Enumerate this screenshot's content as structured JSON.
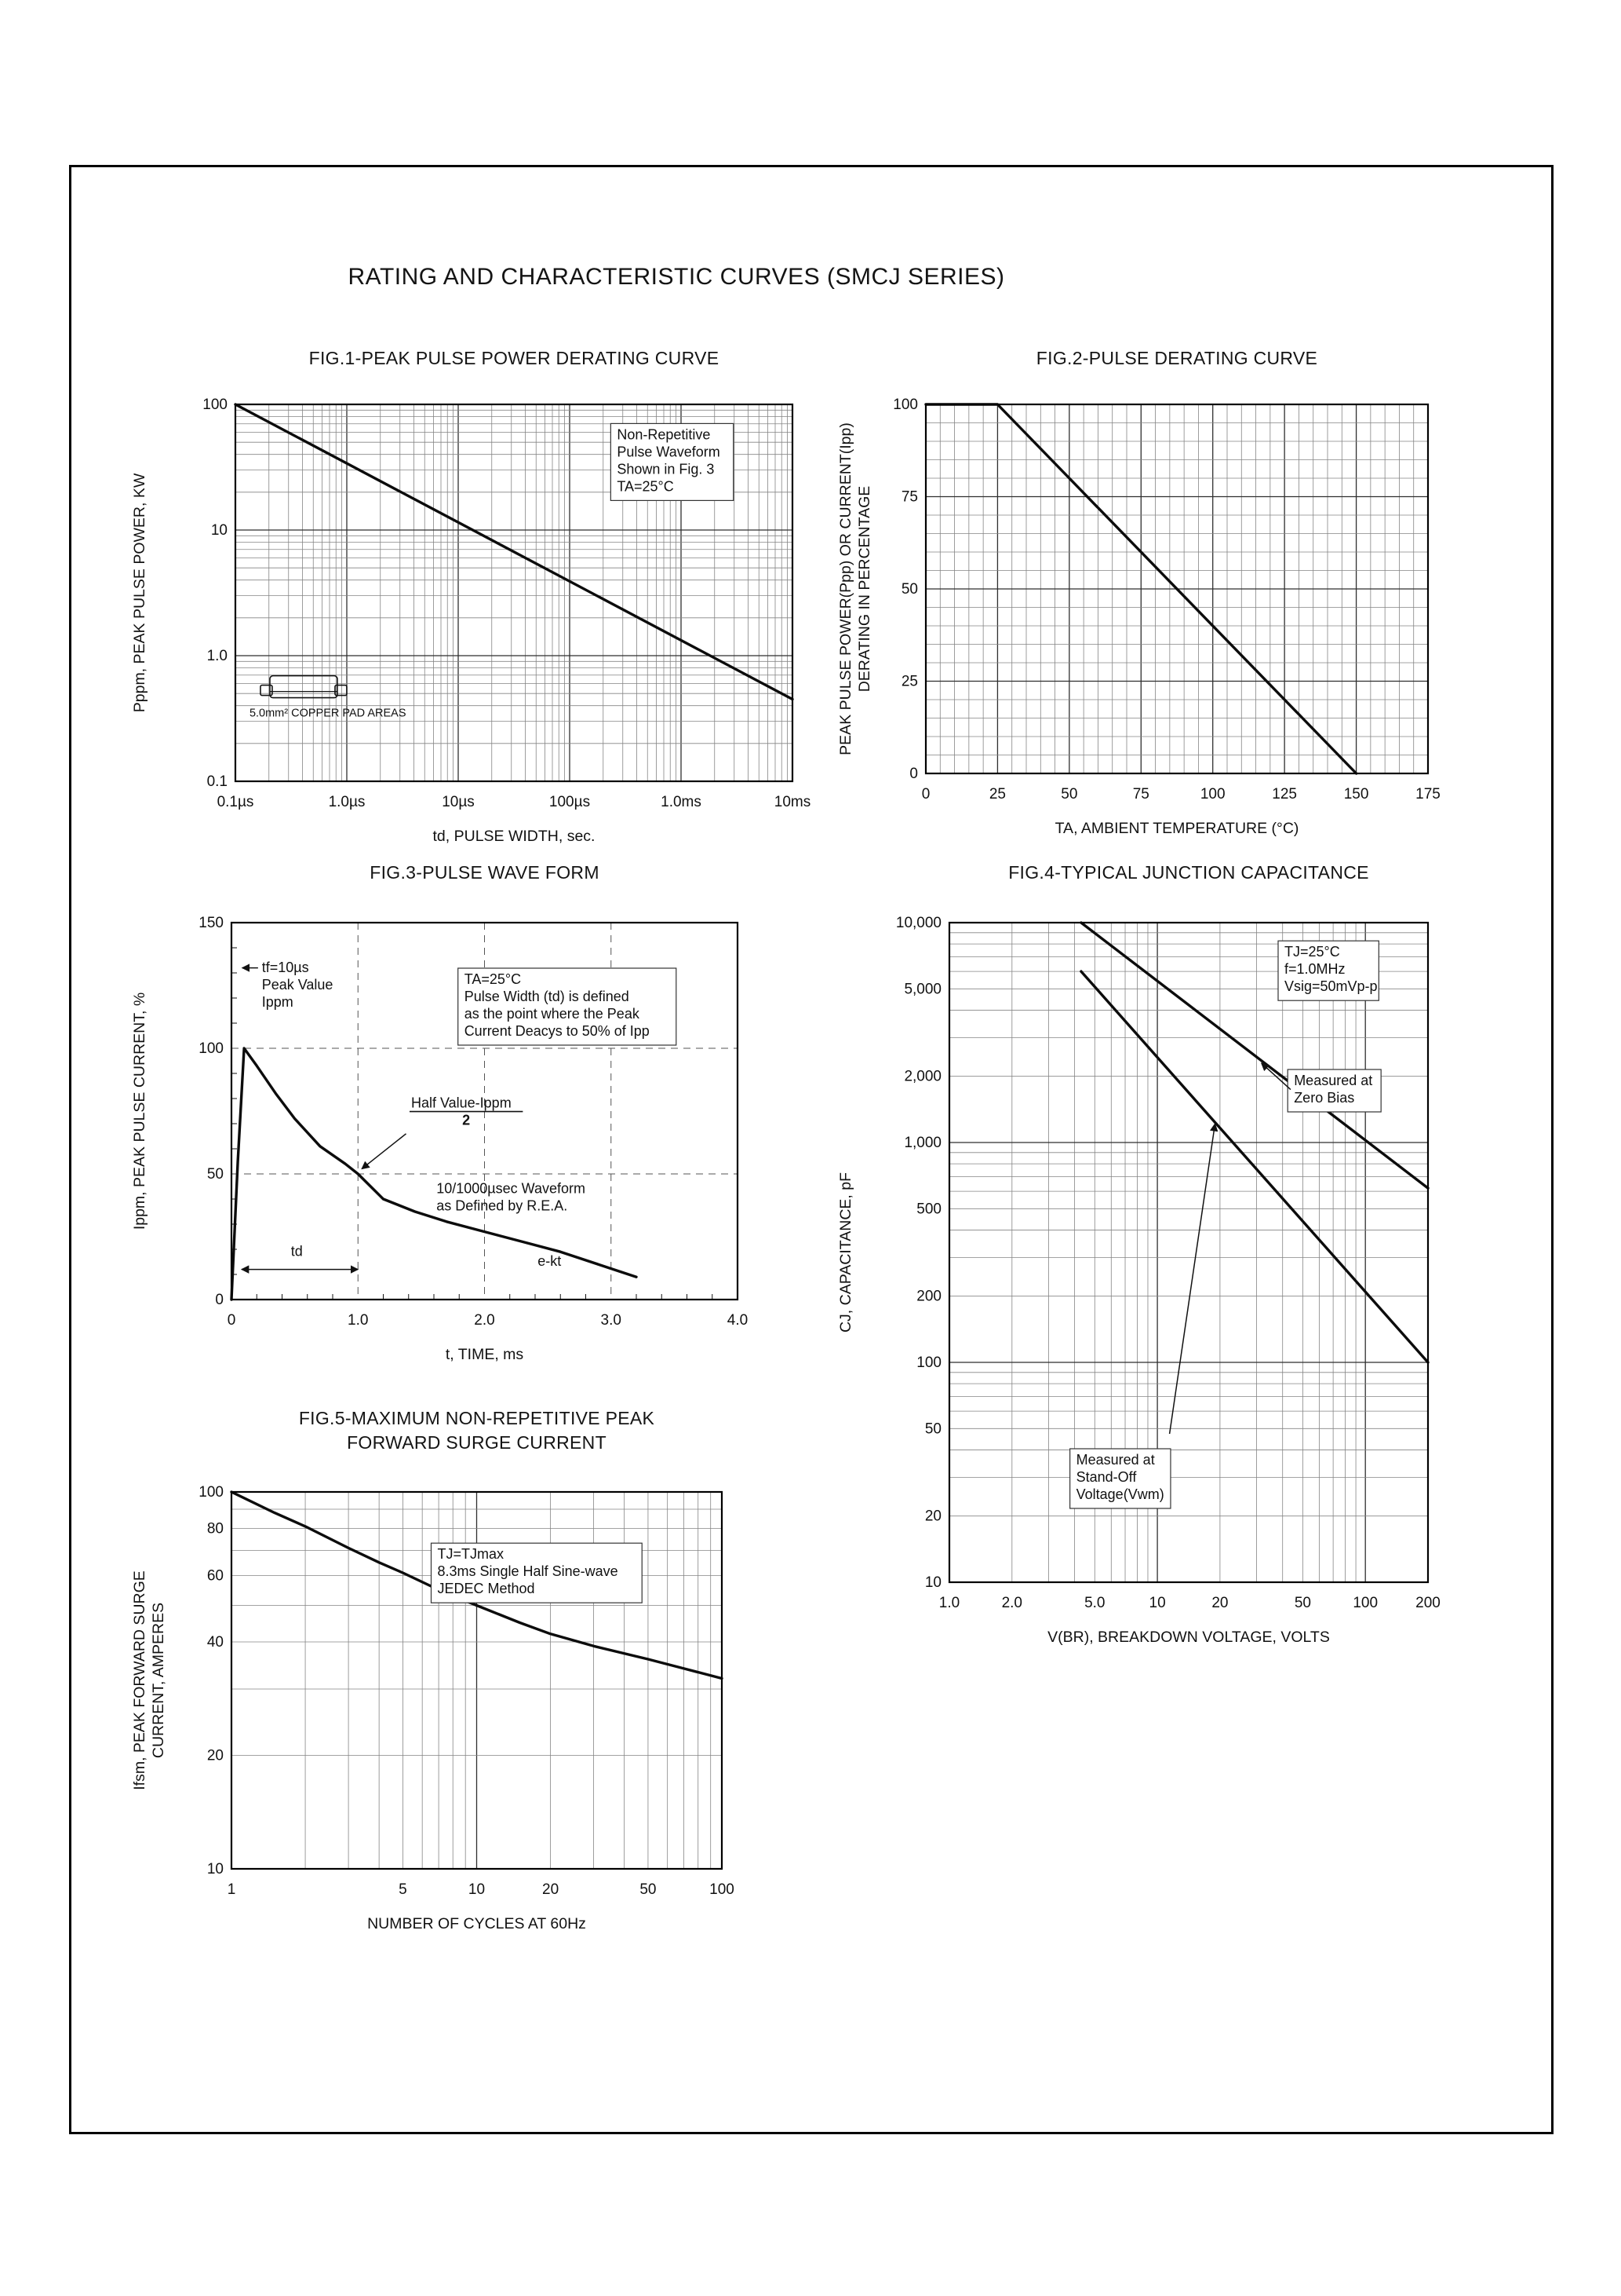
{
  "page": {
    "title": "RATING AND CHARACTERISTIC CURVES (SMCJ SERIES)"
  },
  "chart_data": [
    {
      "id": "fig1",
      "type": "line",
      "title": "FIG.1-PEAK PULSE POWER DERATING CURVE",
      "xlabel": "td, PULSE WIDTH, sec.",
      "ylabel": [
        "Pppm, PEAK PULSE POWER, KW"
      ],
      "x": {
        "scale": "log",
        "min": 1e-07,
        "max": 0.01,
        "ticks": [
          {
            "v": 1e-07,
            "label": "0.1µs"
          },
          {
            "v": 1e-06,
            "label": "1.0µs"
          },
          {
            "v": 1e-05,
            "label": "10µs"
          },
          {
            "v": 0.0001,
            "label": "100µs"
          },
          {
            "v": 0.001,
            "label": "1.0ms"
          },
          {
            "v": 0.01,
            "label": "10ms"
          }
        ]
      },
      "y": {
        "scale": "log",
        "min": 0.1,
        "max": 100,
        "ticks": [
          {
            "v": 100,
            "label": "100"
          },
          {
            "v": 10,
            "label": "10"
          },
          {
            "v": 1,
            "label": "1.0"
          },
          {
            "v": 0.1,
            "label": "0.1"
          }
        ]
      },
      "series": [
        {
          "name": "peak-pulse-power-derating",
          "points": [
            [
              1e-07,
              100
            ],
            [
              0.01,
              0.45
            ]
          ]
        }
      ],
      "annotations": [
        {
          "text": [
            "Non-Repetitive",
            "Pulse Waveform",
            "Shown in Fig. 3",
            "TA=25°C"
          ],
          "fx": 0.685,
          "fy": 0.055,
          "box": true
        },
        {
          "type": "package",
          "label": "5.0mm² COPPER PAD AREAS",
          "fx": 0.045,
          "fy": 0.72
        }
      ]
    },
    {
      "id": "fig2",
      "type": "line",
      "title": "FIG.2-PULSE DERATING CURVE",
      "xlabel": "TA, AMBIENT TEMPERATURE (°C)",
      "ylabel": [
        "PEAK PULSE POWER(Ppp) OR CURRENT(Ipp)",
        "DERATING IN PERCENTAGE"
      ],
      "x": {
        "scale": "linear",
        "min": 0,
        "max": 175,
        "major": 25,
        "minor": 5,
        "ticks": [
          {
            "v": 0,
            "label": "0"
          },
          {
            "v": 25,
            "label": "25"
          },
          {
            "v": 50,
            "label": "50"
          },
          {
            "v": 75,
            "label": "75"
          },
          {
            "v": 100,
            "label": "100"
          },
          {
            "v": 125,
            "label": "125"
          },
          {
            "v": 150,
            "label": "150"
          },
          {
            "v": 175,
            "label": "175"
          }
        ]
      },
      "y": {
        "scale": "linear",
        "min": 0,
        "max": 100,
        "major": 25,
        "minor": 5,
        "ticks": [
          {
            "v": 0,
            "label": "0"
          },
          {
            "v": 25,
            "label": "25"
          },
          {
            "v": 50,
            "label": "50"
          },
          {
            "v": 75,
            "label": "75"
          },
          {
            "v": 100,
            "label": "100"
          }
        ]
      },
      "series": [
        {
          "name": "pulse-derating",
          "points": [
            [
              0,
              100
            ],
            [
              25,
              100
            ],
            [
              150,
              0
            ]
          ]
        }
      ]
    },
    {
      "id": "fig3",
      "type": "line",
      "title": "FIG.3-PULSE WAVE FORM",
      "xlabel": "t, TIME, ms",
      "ylabel": [
        "Ippm, PEAK PULSE CURRENT, %"
      ],
      "x": {
        "scale": "linear",
        "min": 0,
        "max": 4,
        "major": 1,
        "minor": 0.2,
        "grid": "dashed-major",
        "ticks": [
          {
            "v": 0,
            "label": "0"
          },
          {
            "v": 1,
            "label": "1.0"
          },
          {
            "v": 2,
            "label": "2.0"
          },
          {
            "v": 3,
            "label": "3.0"
          },
          {
            "v": 4,
            "label": "4.0"
          }
        ]
      },
      "y": {
        "scale": "linear",
        "min": 0,
        "max": 150,
        "major": 50,
        "minor": 10,
        "grid": "dashed-major",
        "ticks": [
          {
            "v": 0,
            "label": "0"
          },
          {
            "v": 50,
            "label": "50"
          },
          {
            "v": 100,
            "label": "100"
          },
          {
            "v": 150,
            "label": "150"
          }
        ]
      },
      "series": [
        {
          "name": "pulse-waveform",
          "points": [
            [
              0,
              0
            ],
            [
              0.05,
              55
            ],
            [
              0.1,
              100
            ],
            [
              0.2,
              93
            ],
            [
              0.35,
              82
            ],
            [
              0.5,
              72
            ],
            [
              0.7,
              61
            ],
            [
              0.9,
              54
            ],
            [
              1.0,
              50
            ],
            [
              1.1,
              45
            ],
            [
              1.2,
              40
            ],
            [
              1.45,
              35
            ],
            [
              1.7,
              31
            ],
            [
              2.0,
              27
            ],
            [
              2.3,
              23
            ],
            [
              2.6,
              19
            ],
            [
              2.9,
              14
            ],
            [
              3.2,
              9
            ]
          ]
        }
      ],
      "annotations": [
        {
          "text": [
            "tf=10µs",
            "Peak Value",
            "Ippm"
          ],
          "dx": 0.24,
          "dy": 136,
          "leader_d": [
            [
              0.21,
              132
            ],
            [
              0.085,
              132
            ]
          ]
        },
        {
          "text": [
            "TA=25°C",
            "Pulse Width (td) is defined",
            "as the point where the Peak",
            "Current Deacys to 50% of Ipp"
          ],
          "fx": 0.46,
          "fy": 0.125,
          "box": true
        },
        {
          "text": [
            "Half Value-Ippm",
            "2"
          ],
          "dx": 1.42,
          "dy": 82,
          "fraction": true,
          "leader_d": [
            [
              1.38,
              66
            ],
            [
              1.03,
              52
            ]
          ]
        },
        {
          "text": [
            "10/1000µsec Waveform",
            "as Defined by R.E.A."
          ],
          "dx": 1.62,
          "dy": 48
        },
        {
          "text": [
            "td"
          ],
          "dx": 0.47,
          "dy": 23
        },
        {
          "text": [
            "e-kt"
          ],
          "dx": 2.42,
          "dy": 19
        }
      ],
      "annotation_lines": [
        {
          "d": [
            [
              0.08,
              12
            ],
            [
              1.0,
              12
            ]
          ],
          "arrows": "both"
        }
      ]
    },
    {
      "id": "fig4",
      "type": "line",
      "title": "FIG.4-TYPICAL JUNCTION CAPACITANCE",
      "xlabel": "V(BR), BREAKDOWN VOLTAGE, VOLTS",
      "ylabel": [
        "CJ, CAPACITANCE, pF"
      ],
      "x": {
        "scale": "log",
        "min": 1,
        "max": 200,
        "ticks": [
          {
            "v": 1,
            "label": "1.0"
          },
          {
            "v": 2,
            "label": "2.0"
          },
          {
            "v": 5,
            "label": "5.0"
          },
          {
            "v": 10,
            "label": "10"
          },
          {
            "v": 20,
            "label": "20"
          },
          {
            "v": 50,
            "label": "50"
          },
          {
            "v": 100,
            "label": "100"
          },
          {
            "v": 200,
            "label": "200"
          }
        ]
      },
      "y": {
        "scale": "log",
        "min": 10,
        "max": 10000,
        "ticks": [
          {
            "v": 10000,
            "label": "10,000"
          },
          {
            "v": 5000,
            "label": "5,000"
          },
          {
            "v": 2000,
            "label": "2,000"
          },
          {
            "v": 1000,
            "label": "1,000"
          },
          {
            "v": 500,
            "label": "500"
          },
          {
            "v": 200,
            "label": "200"
          },
          {
            "v": 100,
            "label": "100"
          },
          {
            "v": 50,
            "label": "50"
          },
          {
            "v": 20,
            "label": "20"
          },
          {
            "v": 10,
            "label": "10"
          }
        ]
      },
      "series": [
        {
          "name": "measured-at-zero-bias",
          "points": [
            [
              4.3,
              10000
            ],
            [
              200,
              620
            ]
          ]
        },
        {
          "name": "measured-at-stand-off-voltage",
          "points": [
            [
              4.3,
              6000
            ],
            [
              200,
              100
            ]
          ]
        }
      ],
      "annotations": [
        {
          "text": [
            "TJ=25°C",
            "f=1.0MHz",
            "Vsig=50mVp-p"
          ],
          "fx": 0.7,
          "fy": 0.03,
          "box": true
        },
        {
          "text": [
            "Measured at",
            "Zero Bias"
          ],
          "fx": 0.72,
          "fy": 0.225,
          "box": true,
          "leader_f": [
            [
              0.713,
              0.253
            ],
            [
              0.652,
              0.213
            ]
          ]
        },
        {
          "text": [
            "Measured at",
            "Stand-Off",
            "Voltage(Vwm)"
          ],
          "fx": 0.265,
          "fy": 0.8,
          "box": true,
          "leader_f": [
            [
              0.46,
              0.775
            ],
            [
              0.555,
              0.305
            ]
          ]
        }
      ]
    },
    {
      "id": "fig5",
      "type": "line",
      "title": "FIG.5-MAXIMUM NON-REPETITIVE PEAK\nFORWARD SURGE CURRENT",
      "xlabel": "NUMBER OF CYCLES AT 60Hz",
      "ylabel": [
        "Ifsm, PEAK FORWARD SURGE",
        "CURRENT, AMPERES"
      ],
      "x": {
        "scale": "log",
        "min": 1,
        "max": 100,
        "ticks": [
          {
            "v": 1,
            "label": "1"
          },
          {
            "v": 5,
            "label": "5"
          },
          {
            "v": 10,
            "label": "10"
          },
          {
            "v": 20,
            "label": "20"
          },
          {
            "v": 50,
            "label": "50"
          },
          {
            "v": 100,
            "label": "100"
          }
        ]
      },
      "y": {
        "scale": "log",
        "min": 10,
        "max": 100,
        "ticks": [
          {
            "v": 100,
            "label": "100"
          },
          {
            "v": 80,
            "label": "80"
          },
          {
            "v": 60,
            "label": "60"
          },
          {
            "v": 40,
            "label": "40"
          },
          {
            "v": 20,
            "label": "20"
          },
          {
            "v": 10,
            "label": "10"
          }
        ]
      },
      "series": [
        {
          "name": "max-non-repetitive-surge-current",
          "points": [
            [
              1,
              100
            ],
            [
              1.5,
              88
            ],
            [
              2,
              81
            ],
            [
              3,
              71
            ],
            [
              4,
              65
            ],
            [
              5,
              61
            ],
            [
              7,
              55
            ],
            [
              10,
              50
            ],
            [
              15,
              45
            ],
            [
              20,
              42
            ],
            [
              30,
              39
            ],
            [
              50,
              36
            ],
            [
              70,
              34
            ],
            [
              100,
              32
            ]
          ]
        }
      ],
      "annotations": [
        {
          "text": [
            "TJ=TJmax",
            "8.3ms Single Half Sine-wave",
            "JEDEC Method"
          ],
          "fx": 0.42,
          "fy": 0.14,
          "box": true
        }
      ]
    }
  ]
}
